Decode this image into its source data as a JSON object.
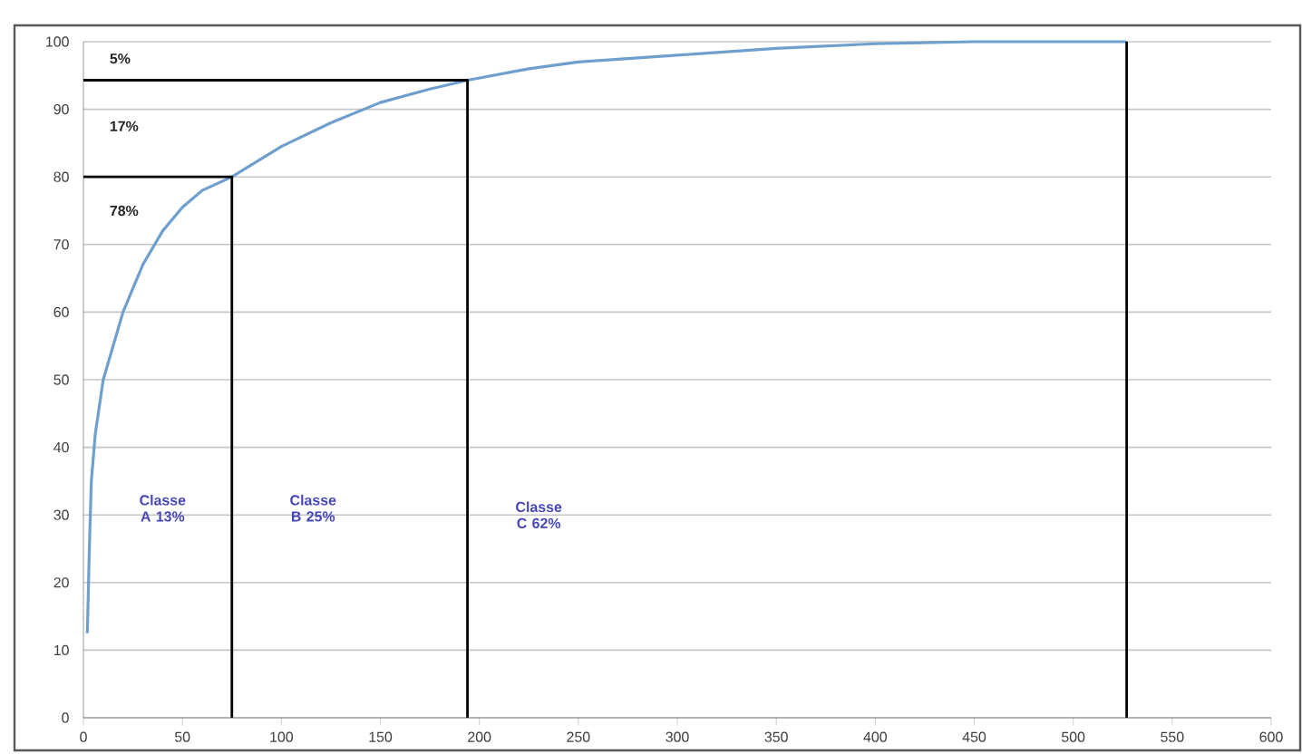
{
  "chart_data": {
    "type": "line",
    "xlim": [
      0,
      600
    ],
    "ylim": [
      0,
      100
    ],
    "xticks": [
      0,
      50,
      100,
      150,
      200,
      250,
      300,
      350,
      400,
      450,
      500,
      550,
      600
    ],
    "yticks": [
      0,
      10,
      20,
      30,
      40,
      50,
      60,
      70,
      80,
      90,
      100
    ],
    "grid": "y",
    "marker": "none",
    "line_style": "solid",
    "series": [
      {
        "color": "#6f9fcc",
        "x": [
          2,
          3,
          4,
          6,
          10,
          15,
          20,
          30,
          40,
          50,
          60,
          75,
          100,
          125,
          150,
          175,
          194,
          225,
          250,
          300,
          350,
          400,
          450,
          527
        ],
        "values": [
          12.5,
          25,
          35,
          42,
          50,
          55,
          60,
          67,
          72,
          75.5,
          78,
          80,
          84.5,
          88,
          91,
          93,
          94.3,
          96,
          97,
          98,
          99,
          99.7,
          100,
          100
        ]
      },
      {
        "color": "#000000",
        "x": [
          0,
          75,
          75
        ],
        "values": [
          80,
          80,
          0
        ]
      },
      {
        "color": "#000000",
        "x": [
          0,
          194,
          194
        ],
        "values": [
          94.3,
          94.3,
          0
        ]
      },
      {
        "color": "#000000",
        "x": [
          527,
          527
        ],
        "values": [
          0,
          100
        ]
      }
    ],
    "annotations": [
      "5%",
      "17%",
      "78%",
      "Classe A 13%",
      "Classe B 25%",
      "Classe C 62%"
    ]
  }
}
